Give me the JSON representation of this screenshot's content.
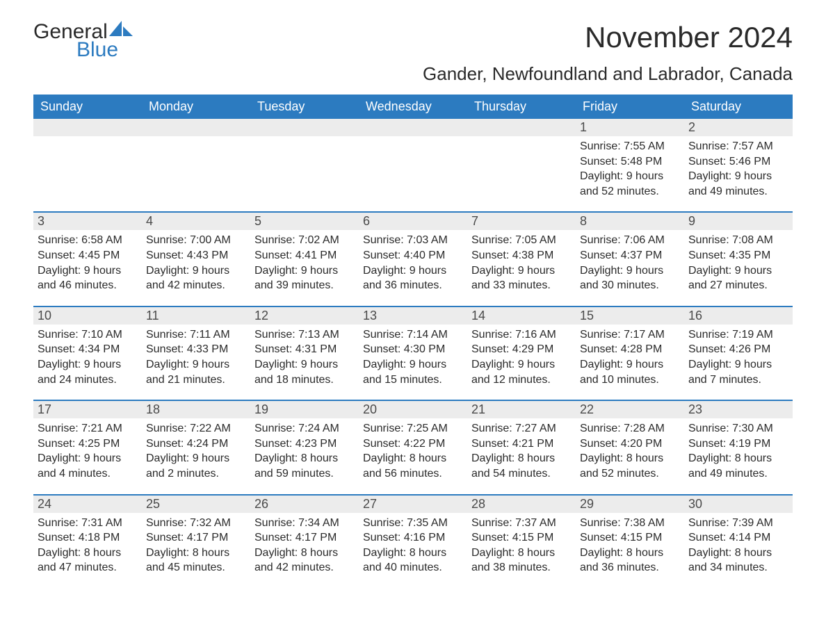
{
  "logo": {
    "text_general": "General",
    "text_blue": "Blue",
    "icon_color": "#2c7bc0"
  },
  "title": "November 2024",
  "location": "Gander, Newfoundland and Labrador, Canada",
  "colors": {
    "header_bg": "#2c7bc0",
    "header_text": "#ffffff",
    "daynum_bg": "#ececec",
    "body_text": "#2a2a2a",
    "page_bg": "#ffffff"
  },
  "day_headers": [
    "Sunday",
    "Monday",
    "Tuesday",
    "Wednesday",
    "Thursday",
    "Friday",
    "Saturday"
  ],
  "weeks": [
    [
      {
        "empty": true
      },
      {
        "empty": true
      },
      {
        "empty": true
      },
      {
        "empty": true
      },
      {
        "empty": true
      },
      {
        "day": "1",
        "sunrise": "Sunrise: 7:55 AM",
        "sunset": "Sunset: 5:48 PM",
        "daylight1": "Daylight: 9 hours",
        "daylight2": "and 52 minutes."
      },
      {
        "day": "2",
        "sunrise": "Sunrise: 7:57 AM",
        "sunset": "Sunset: 5:46 PM",
        "daylight1": "Daylight: 9 hours",
        "daylight2": "and 49 minutes."
      }
    ],
    [
      {
        "day": "3",
        "sunrise": "Sunrise: 6:58 AM",
        "sunset": "Sunset: 4:45 PM",
        "daylight1": "Daylight: 9 hours",
        "daylight2": "and 46 minutes."
      },
      {
        "day": "4",
        "sunrise": "Sunrise: 7:00 AM",
        "sunset": "Sunset: 4:43 PM",
        "daylight1": "Daylight: 9 hours",
        "daylight2": "and 42 minutes."
      },
      {
        "day": "5",
        "sunrise": "Sunrise: 7:02 AM",
        "sunset": "Sunset: 4:41 PM",
        "daylight1": "Daylight: 9 hours",
        "daylight2": "and 39 minutes."
      },
      {
        "day": "6",
        "sunrise": "Sunrise: 7:03 AM",
        "sunset": "Sunset: 4:40 PM",
        "daylight1": "Daylight: 9 hours",
        "daylight2": "and 36 minutes."
      },
      {
        "day": "7",
        "sunrise": "Sunrise: 7:05 AM",
        "sunset": "Sunset: 4:38 PM",
        "daylight1": "Daylight: 9 hours",
        "daylight2": "and 33 minutes."
      },
      {
        "day": "8",
        "sunrise": "Sunrise: 7:06 AM",
        "sunset": "Sunset: 4:37 PM",
        "daylight1": "Daylight: 9 hours",
        "daylight2": "and 30 minutes."
      },
      {
        "day": "9",
        "sunrise": "Sunrise: 7:08 AM",
        "sunset": "Sunset: 4:35 PM",
        "daylight1": "Daylight: 9 hours",
        "daylight2": "and 27 minutes."
      }
    ],
    [
      {
        "day": "10",
        "sunrise": "Sunrise: 7:10 AM",
        "sunset": "Sunset: 4:34 PM",
        "daylight1": "Daylight: 9 hours",
        "daylight2": "and 24 minutes."
      },
      {
        "day": "11",
        "sunrise": "Sunrise: 7:11 AM",
        "sunset": "Sunset: 4:33 PM",
        "daylight1": "Daylight: 9 hours",
        "daylight2": "and 21 minutes."
      },
      {
        "day": "12",
        "sunrise": "Sunrise: 7:13 AM",
        "sunset": "Sunset: 4:31 PM",
        "daylight1": "Daylight: 9 hours",
        "daylight2": "and 18 minutes."
      },
      {
        "day": "13",
        "sunrise": "Sunrise: 7:14 AM",
        "sunset": "Sunset: 4:30 PM",
        "daylight1": "Daylight: 9 hours",
        "daylight2": "and 15 minutes."
      },
      {
        "day": "14",
        "sunrise": "Sunrise: 7:16 AM",
        "sunset": "Sunset: 4:29 PM",
        "daylight1": "Daylight: 9 hours",
        "daylight2": "and 12 minutes."
      },
      {
        "day": "15",
        "sunrise": "Sunrise: 7:17 AM",
        "sunset": "Sunset: 4:28 PM",
        "daylight1": "Daylight: 9 hours",
        "daylight2": "and 10 minutes."
      },
      {
        "day": "16",
        "sunrise": "Sunrise: 7:19 AM",
        "sunset": "Sunset: 4:26 PM",
        "daylight1": "Daylight: 9 hours",
        "daylight2": "and 7 minutes."
      }
    ],
    [
      {
        "day": "17",
        "sunrise": "Sunrise: 7:21 AM",
        "sunset": "Sunset: 4:25 PM",
        "daylight1": "Daylight: 9 hours",
        "daylight2": "and 4 minutes."
      },
      {
        "day": "18",
        "sunrise": "Sunrise: 7:22 AM",
        "sunset": "Sunset: 4:24 PM",
        "daylight1": "Daylight: 9 hours",
        "daylight2": "and 2 minutes."
      },
      {
        "day": "19",
        "sunrise": "Sunrise: 7:24 AM",
        "sunset": "Sunset: 4:23 PM",
        "daylight1": "Daylight: 8 hours",
        "daylight2": "and 59 minutes."
      },
      {
        "day": "20",
        "sunrise": "Sunrise: 7:25 AM",
        "sunset": "Sunset: 4:22 PM",
        "daylight1": "Daylight: 8 hours",
        "daylight2": "and 56 minutes."
      },
      {
        "day": "21",
        "sunrise": "Sunrise: 7:27 AM",
        "sunset": "Sunset: 4:21 PM",
        "daylight1": "Daylight: 8 hours",
        "daylight2": "and 54 minutes."
      },
      {
        "day": "22",
        "sunrise": "Sunrise: 7:28 AM",
        "sunset": "Sunset: 4:20 PM",
        "daylight1": "Daylight: 8 hours",
        "daylight2": "and 52 minutes."
      },
      {
        "day": "23",
        "sunrise": "Sunrise: 7:30 AM",
        "sunset": "Sunset: 4:19 PM",
        "daylight1": "Daylight: 8 hours",
        "daylight2": "and 49 minutes."
      }
    ],
    [
      {
        "day": "24",
        "sunrise": "Sunrise: 7:31 AM",
        "sunset": "Sunset: 4:18 PM",
        "daylight1": "Daylight: 8 hours",
        "daylight2": "and 47 minutes."
      },
      {
        "day": "25",
        "sunrise": "Sunrise: 7:32 AM",
        "sunset": "Sunset: 4:17 PM",
        "daylight1": "Daylight: 8 hours",
        "daylight2": "and 45 minutes."
      },
      {
        "day": "26",
        "sunrise": "Sunrise: 7:34 AM",
        "sunset": "Sunset: 4:17 PM",
        "daylight1": "Daylight: 8 hours",
        "daylight2": "and 42 minutes."
      },
      {
        "day": "27",
        "sunrise": "Sunrise: 7:35 AM",
        "sunset": "Sunset: 4:16 PM",
        "daylight1": "Daylight: 8 hours",
        "daylight2": "and 40 minutes."
      },
      {
        "day": "28",
        "sunrise": "Sunrise: 7:37 AM",
        "sunset": "Sunset: 4:15 PM",
        "daylight1": "Daylight: 8 hours",
        "daylight2": "and 38 minutes."
      },
      {
        "day": "29",
        "sunrise": "Sunrise: 7:38 AM",
        "sunset": "Sunset: 4:15 PM",
        "daylight1": "Daylight: 8 hours",
        "daylight2": "and 36 minutes."
      },
      {
        "day": "30",
        "sunrise": "Sunrise: 7:39 AM",
        "sunset": "Sunset: 4:14 PM",
        "daylight1": "Daylight: 8 hours",
        "daylight2": "and 34 minutes."
      }
    ]
  ]
}
